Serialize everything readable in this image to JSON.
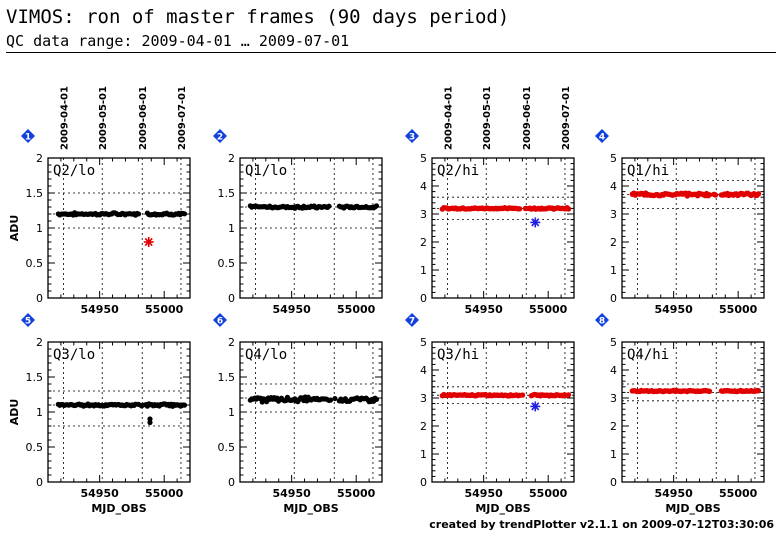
{
  "header": {
    "title": "VIMOS: ron of master frames (90 days period)",
    "subtitle": "QC data range: 2009-04-01 … 2009-07-01"
  },
  "footer": "created by trendPlotter v2.1.1 on 2009-07-12T03:30:06",
  "colors": {
    "lo": "#000000",
    "hi": "#e00000",
    "outlier_red": "#e00000",
    "outlier_blue": "#2020e0",
    "badge": "#1040e0"
  },
  "date_axis": {
    "labels": [
      "2009-04-01",
      "2009-05-01",
      "2009-06-01",
      "2009-07-01"
    ],
    "mjd": [
      54922,
      54952,
      54983,
      55013
    ]
  },
  "chart_data": [
    {
      "type": "scatter",
      "badge": "1",
      "label": "Q2/lo",
      "ylabel": "ADU",
      "xlabel": "",
      "xlim": [
        54910,
        55020
      ],
      "ylim": [
        0,
        2
      ],
      "yticks": [
        0,
        0.5,
        1,
        1.5,
        2
      ],
      "xticks": [
        54950,
        55000
      ],
      "ref_lines": [
        1.0,
        1.2,
        1.5
      ],
      "base": 1.2,
      "spread": 0.02,
      "outliers": [
        {
          "x": 54988,
          "y": 0.8,
          "marker": "red-star"
        }
      ],
      "color_key": "lo"
    },
    {
      "type": "scatter",
      "badge": "2",
      "label": "Q1/lo",
      "ylabel": "",
      "xlabel": "",
      "xlim": [
        54910,
        55020
      ],
      "ylim": [
        0,
        2
      ],
      "yticks": [
        0,
        0.5,
        1,
        1.5,
        2
      ],
      "xticks": [
        54950,
        55000
      ],
      "ref_lines": [
        1.0,
        1.3,
        1.5
      ],
      "base": 1.3,
      "spread": 0.02,
      "outliers": [],
      "color_key": "lo"
    },
    {
      "type": "scatter",
      "badge": "3",
      "label": "Q2/hi",
      "ylabel": "",
      "xlabel": "",
      "xlim": [
        54910,
        55020
      ],
      "ylim": [
        0,
        5
      ],
      "yticks": [
        0,
        1,
        2,
        3,
        4,
        5
      ],
      "xticks": [
        54950,
        55000
      ],
      "ref_lines": [
        2.8,
        3.2,
        3.6
      ],
      "base": 3.2,
      "spread": 0.03,
      "outliers": [
        {
          "x": 54990,
          "y": 2.7,
          "marker": "blue-star"
        }
      ],
      "color_key": "hi"
    },
    {
      "type": "scatter",
      "badge": "4",
      "label": "Q1/hi",
      "ylabel": "",
      "xlabel": "",
      "xlim": [
        54910,
        55020
      ],
      "ylim": [
        0,
        5
      ],
      "yticks": [
        0,
        1,
        2,
        3,
        4,
        5
      ],
      "xticks": [
        54950,
        55000
      ],
      "ref_lines": [
        3.2,
        3.7,
        4.2
      ],
      "base": 3.7,
      "spread": 0.06,
      "outliers": [],
      "color_key": "hi"
    },
    {
      "type": "scatter",
      "badge": "5",
      "label": "Q3/lo",
      "ylabel": "ADU",
      "xlabel": "MJD_OBS",
      "xlim": [
        54910,
        55020
      ],
      "ylim": [
        0,
        2
      ],
      "yticks": [
        0,
        0.5,
        1,
        1.5,
        2
      ],
      "xticks": [
        54950,
        55000
      ],
      "ref_lines": [
        0.8,
        1.1,
        1.3
      ],
      "base": 1.1,
      "spread": 0.02,
      "outliers": [
        {
          "x": 54989,
          "y": 0.9,
          "marker": "black-dot"
        },
        {
          "x": 54989,
          "y": 0.85,
          "marker": "black-dot"
        }
      ],
      "color_key": "lo"
    },
    {
      "type": "scatter",
      "badge": "6",
      "label": "Q4/lo",
      "ylabel": "",
      "xlabel": "MJD_OBS",
      "xlim": [
        54910,
        55020
      ],
      "ylim": [
        0,
        2
      ],
      "yticks": [
        0,
        0.5,
        1,
        1.5,
        2
      ],
      "xticks": [
        54950,
        55000
      ],
      "ref_lines": [
        1.0,
        1.2,
        1.4
      ],
      "base": 1.18,
      "spread": 0.04,
      "outliers": [],
      "color_key": "lo"
    },
    {
      "type": "scatter",
      "badge": "7",
      "label": "Q3/hi",
      "ylabel": "",
      "xlabel": "MJD_OBS",
      "xlim": [
        54910,
        55020
      ],
      "ylim": [
        0,
        5
      ],
      "yticks": [
        0,
        1,
        2,
        3,
        4,
        5
      ],
      "xticks": [
        54950,
        55000
      ],
      "ref_lines": [
        2.8,
        3.1,
        3.4
      ],
      "base": 3.1,
      "spread": 0.03,
      "outliers": [
        {
          "x": 54990,
          "y": 2.7,
          "marker": "blue-star"
        }
      ],
      "color_key": "hi"
    },
    {
      "type": "scatter",
      "badge": "8",
      "label": "Q4/hi",
      "ylabel": "",
      "xlabel": "MJD_OBS",
      "xlim": [
        54910,
        55020
      ],
      "ylim": [
        0,
        5
      ],
      "yticks": [
        0,
        1,
        2,
        3,
        4,
        5
      ],
      "xticks": [
        54950,
        55000
      ],
      "ref_lines": [
        2.9,
        3.2,
        3.5
      ],
      "base": 3.25,
      "spread": 0.03,
      "outliers": [],
      "color_key": "hi"
    }
  ]
}
